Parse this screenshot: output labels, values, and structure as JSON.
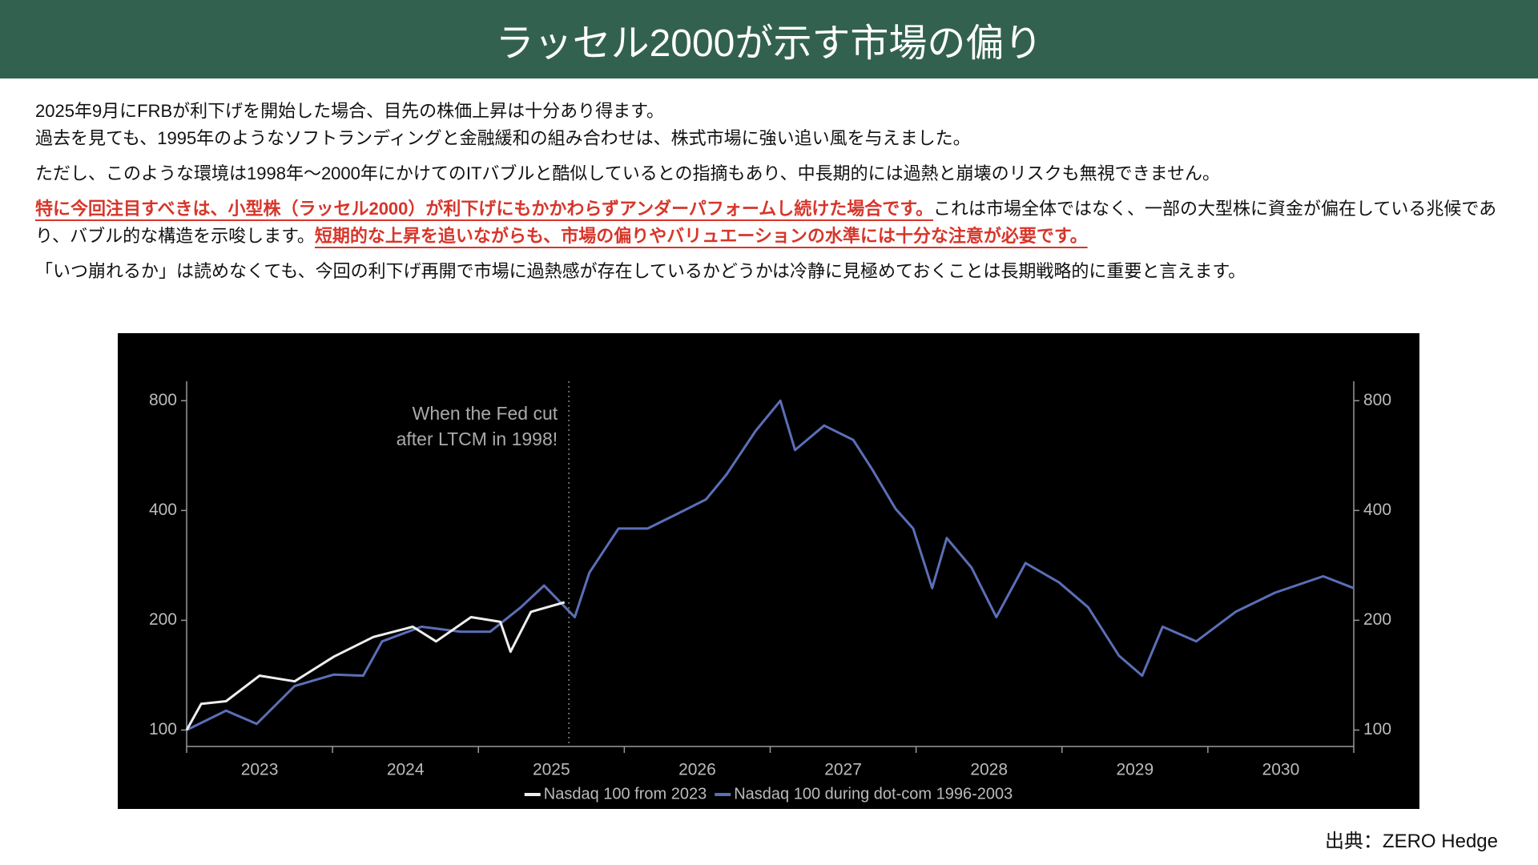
{
  "header": {
    "title": "ラッセル2000が示す市場の偏り"
  },
  "paragraphs": [
    "2025年9月にFRBが利下げを開始した場合、目先の株価上昇は十分あり得ます。",
    "過去を見ても、1995年のようなソフトランディングと金融緩和の組み合わせは、株式市場に強い追い風を与えました。",
    "ただし、このような環境は1998年〜2000年にかけてのITバブルと酷似しているとの指摘もあり、中長期的には過熱と崩壊のリスクも無視できません。",
    [
      "特に今回注目すべきは、小型株（ラッセル2000）が利下げにもかかわらずアンダーパフォームし続けた場合です。",
      "これは市場全体ではなく、一部の大型株に資金が偏在している兆候であり、バブル的な構造を示唆します。",
      "短期的な上昇を追いながらも、市場の偏りやバリュエーションの水準には十分な注意が必要です。"
    ],
    "「いつ崩れるか」は読めなくても、今回の利下げ再開で市場に過熱感が存在しているかどうかは冷静に見極めておくことは長期戦略的に重要と言えます。"
  ],
  "chart_data": {
    "type": "line",
    "log_scale": true,
    "legend": "bottom",
    "xlim": [
      2023,
      2031
    ],
    "xticks": [
      {
        "value": 2023.5,
        "label": "2023"
      },
      {
        "value": 2024.5,
        "label": "2024"
      },
      {
        "value": 2025.5,
        "label": "2025"
      },
      {
        "value": 2026.5,
        "label": "2026"
      },
      {
        "value": 2027.5,
        "label": "2027"
      },
      {
        "value": 2028.5,
        "label": "2028"
      },
      {
        "value": 2029.5,
        "label": "2029"
      },
      {
        "value": 2030.5,
        "label": "2030"
      }
    ],
    "xminor": [
      2023,
      2024,
      2025,
      2026,
      2027,
      2028,
      2029,
      2030,
      2031
    ],
    "ylim": [
      92,
      860
    ],
    "yticks": [
      100,
      200,
      400,
      800
    ],
    "annotations": [
      {
        "text": [
          "When the Fed cut",
          "after LTCM in 1998!"
        ],
        "x": 2025.62
      }
    ],
    "series": [
      {
        "name": "Nasdaq 100 during dot-com 1996-2003",
        "color": "#5b6fb8",
        "x": [
          2023.0,
          2023.27,
          2023.48,
          2023.74,
          2024.01,
          2024.21,
          2024.34,
          2024.61,
          2024.88,
          2025.08,
          2025.29,
          2025.45,
          2025.66,
          2025.76,
          2025.96,
          2026.16,
          2026.36,
          2026.56,
          2026.7,
          2026.9,
          2027.07,
          2027.17,
          2027.37,
          2027.57,
          2027.7,
          2027.86,
          2027.98,
          2028.11,
          2028.21,
          2028.38,
          2028.55,
          2028.75,
          2028.98,
          2029.18,
          2029.39,
          2029.55,
          2029.69,
          2029.92,
          2030.19,
          2030.46,
          2030.79,
          2031.0
        ],
        "values": [
          100,
          113,
          104,
          132,
          142,
          141,
          175,
          192,
          186,
          186,
          217,
          249,
          204,
          270,
          357,
          357,
          391,
          429,
          502,
          661,
          800,
          586,
          684,
          624,
          518,
          404,
          357,
          245,
          336,
          279,
          204,
          287,
          254,
          217,
          160,
          141,
          192,
          175,
          211,
          238,
          264,
          245
        ]
      },
      {
        "name": "Nasdaq 100 from 2023",
        "color": "#eeeeee",
        "x": [
          2023.0,
          2023.1,
          2023.27,
          2023.5,
          2023.74,
          2024.01,
          2024.28,
          2024.55,
          2024.71,
          2024.95,
          2025.15,
          2025.22,
          2025.36,
          2025.59
        ],
        "values": [
          100,
          118,
          120,
          141,
          136,
          159,
          180,
          192,
          175,
          204,
          198,
          164,
          211,
          224
        ]
      }
    ]
  },
  "source": "出典：ZERO Hedge"
}
